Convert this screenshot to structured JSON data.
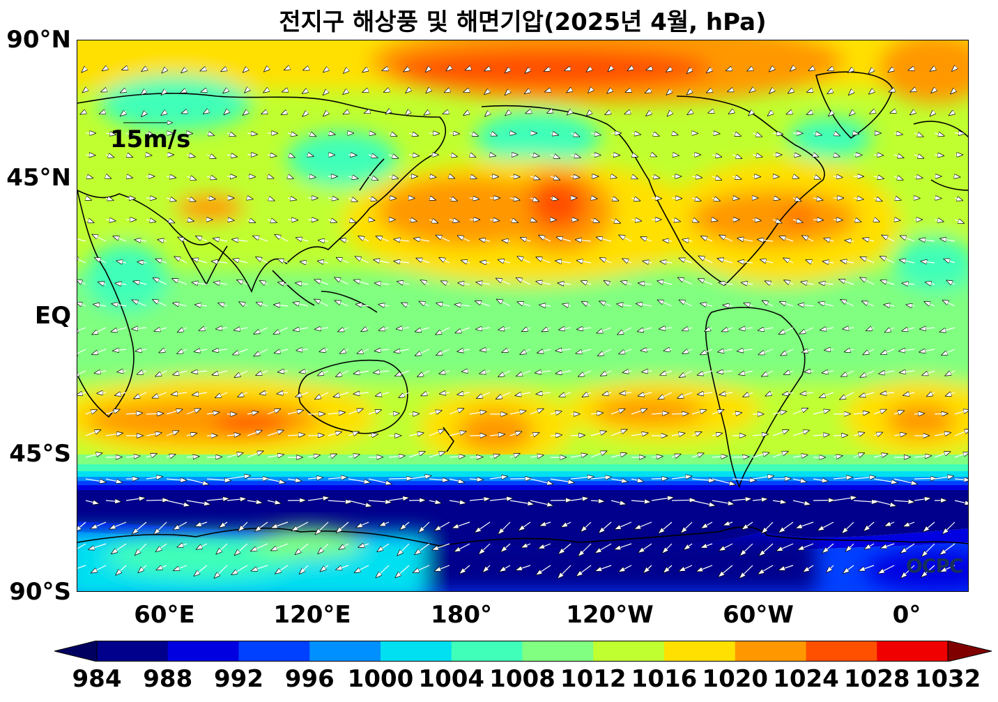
{
  "title": "전지구 해상풍 및 해면기압(2025년 4월, hPa)",
  "lat_labels": [
    "90°N",
    "45°N",
    "EQ",
    "45°S",
    "90°S"
  ],
  "lon_labels": [
    "60°E",
    "120°E",
    "180°",
    "120°W",
    "60°W",
    "0°"
  ],
  "wind_reference": "15m/s",
  "logo_text": "OCPC",
  "colorbar": {
    "ticks": [
      "984",
      "988",
      "992",
      "996",
      "1000",
      "1004",
      "1008",
      "1012",
      "1016",
      "1020",
      "1024",
      "1028",
      "1032"
    ],
    "colors": [
      "#00008c",
      "#0000e0",
      "#0040ff",
      "#0090ff",
      "#00e0f0",
      "#40ffb8",
      "#80ff80",
      "#c0ff30",
      "#ffe000",
      "#ff9800",
      "#ff5000",
      "#f00000",
      "#800000"
    ]
  }
}
